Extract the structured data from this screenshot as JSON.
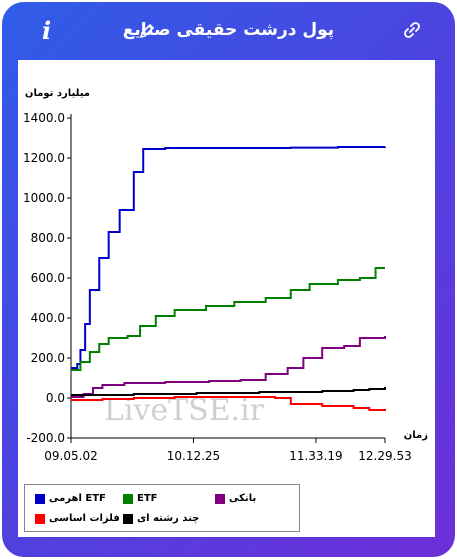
{
  "header": {
    "title": "پول درشت حقیقی صنایع",
    "info_icon_label": "i"
  },
  "watermark": "LiveTSE.ir",
  "chart_data": {
    "type": "line",
    "ylabel": "میلیارد تومان",
    "xlabel": "زمان",
    "ylim": [
      -200,
      1400
    ],
    "yticks": [
      "1400.0",
      "1200.0",
      "1000.0",
      "800.0",
      "600.0",
      "400.0",
      "200.0",
      "0.0",
      "-200.0"
    ],
    "xticks": [
      "09.05.02",
      "10.12.25",
      "11.33.19",
      "12.29.53"
    ],
    "series": [
      {
        "name": "ETF اهرمی",
        "color": "#0000cc",
        "values": [
          [
            0,
            150
          ],
          [
            0.02,
            170
          ],
          [
            0.03,
            240
          ],
          [
            0.045,
            370
          ],
          [
            0.06,
            540
          ],
          [
            0.09,
            700
          ],
          [
            0.12,
            830
          ],
          [
            0.155,
            940
          ],
          [
            0.2,
            1130
          ],
          [
            0.23,
            1245
          ],
          [
            0.3,
            1250
          ],
          [
            0.5,
            1250
          ],
          [
            0.7,
            1252
          ],
          [
            0.85,
            1255
          ],
          [
            1,
            1256
          ]
        ]
      },
      {
        "name": "ETF",
        "color": "#008000",
        "values": [
          [
            0,
            140
          ],
          [
            0.03,
            180
          ],
          [
            0.06,
            230
          ],
          [
            0.09,
            270
          ],
          [
            0.12,
            300
          ],
          [
            0.18,
            310
          ],
          [
            0.22,
            360
          ],
          [
            0.27,
            410
          ],
          [
            0.33,
            440
          ],
          [
            0.43,
            460
          ],
          [
            0.52,
            480
          ],
          [
            0.62,
            500
          ],
          [
            0.7,
            540
          ],
          [
            0.76,
            570
          ],
          [
            0.85,
            590
          ],
          [
            0.92,
            600
          ],
          [
            0.97,
            650
          ],
          [
            1,
            650
          ]
        ]
      },
      {
        "name": "بانکی",
        "color": "#800080",
        "values": [
          [
            0,
            5
          ],
          [
            0.04,
            20
          ],
          [
            0.07,
            50
          ],
          [
            0.1,
            65
          ],
          [
            0.17,
            75
          ],
          [
            0.3,
            80
          ],
          [
            0.44,
            85
          ],
          [
            0.54,
            90
          ],
          [
            0.62,
            120
          ],
          [
            0.69,
            150
          ],
          [
            0.74,
            200
          ],
          [
            0.8,
            250
          ],
          [
            0.87,
            260
          ],
          [
            0.92,
            300
          ],
          [
            1,
            310
          ]
        ]
      },
      {
        "name": "فلزات اساسی",
        "color": "#ff0000",
        "values": [
          [
            0,
            -10
          ],
          [
            0.1,
            -5
          ],
          [
            0.2,
            0
          ],
          [
            0.33,
            5
          ],
          [
            0.5,
            5
          ],
          [
            0.65,
            0
          ],
          [
            0.7,
            -30
          ],
          [
            0.8,
            -40
          ],
          [
            0.9,
            -50
          ],
          [
            0.95,
            -60
          ],
          [
            1,
            -65
          ]
        ]
      },
      {
        "name": "چند رشته ای",
        "color": "#000000",
        "values": [
          [
            0,
            15
          ],
          [
            0.1,
            15
          ],
          [
            0.2,
            20
          ],
          [
            0.4,
            25
          ],
          [
            0.6,
            30
          ],
          [
            0.8,
            35
          ],
          [
            0.9,
            40
          ],
          [
            0.95,
            45
          ],
          [
            1,
            55
          ]
        ]
      }
    ]
  },
  "legend": [
    {
      "label": "ETF اهرمی",
      "color": "#0000cc"
    },
    {
      "label": "ETF",
      "color": "#008000"
    },
    {
      "label": "بانکی",
      "color": "#800080"
    },
    {
      "label": "فلزات اساسی",
      "color": "#ff0000"
    },
    {
      "label": "چند رشته ای",
      "color": "#000000"
    }
  ]
}
